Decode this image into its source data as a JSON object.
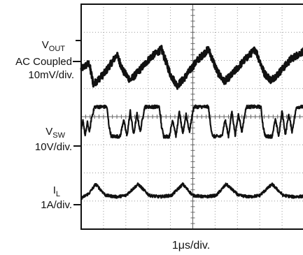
{
  "chart_data": {
    "type": "line",
    "xlabel": "1μs/div.",
    "grid": true,
    "divisions": {
      "x": 10,
      "y": 8
    },
    "series": [
      {
        "name": "VOUT",
        "label_main": "V",
        "label_sub": "OUT",
        "label_line2": "AC Coupled",
        "label_line3": "10mV/div.",
        "baseline_div": 2.55,
        "scale_per_div": "10mV",
        "x": [
          0.0,
          0.35,
          0.55,
          1.05,
          1.6,
          1.9,
          2.2,
          2.5,
          3.1,
          3.6,
          4.0,
          4.3,
          4.6,
          5.2,
          5.7,
          6.1,
          6.4,
          6.7,
          7.3,
          7.8,
          8.2,
          8.5,
          8.8,
          9.4,
          10.0
        ],
        "y": [
          0.25,
          0.45,
          -0.3,
          0.1,
          0.75,
          0.15,
          -0.15,
          0.1,
          0.65,
          0.95,
          0.05,
          -0.35,
          -0.1,
          0.55,
          0.95,
          0.15,
          -0.2,
          0.0,
          0.55,
          0.95,
          0.1,
          -0.15,
          0.05,
          0.6,
          0.9
        ],
        "noise_div": 0.12
      },
      {
        "name": "VSW",
        "label_main": "V",
        "label_sub": "SW",
        "label_line2": "10V/div.",
        "baseline_div": 4.65,
        "scale_per_div": "10V",
        "x": [
          0.0,
          0.08,
          0.18,
          0.28,
          0.38,
          0.45,
          0.6,
          1.15,
          1.25,
          1.35,
          1.75,
          1.9,
          2.05,
          2.2,
          2.35,
          2.5,
          2.65,
          2.75,
          2.85,
          3.5,
          3.6,
          3.7,
          3.95,
          4.1,
          4.25,
          4.4,
          4.55,
          4.7,
          4.85,
          4.95,
          5.05,
          5.7,
          5.8,
          5.9,
          6.3,
          6.45,
          6.6,
          6.75,
          6.9,
          7.05,
          7.2,
          7.3,
          7.4,
          8.05,
          8.15,
          8.25,
          8.55,
          8.7,
          8.85,
          9.0,
          9.15,
          9.3,
          9.45,
          9.55,
          9.65,
          10.0
        ],
        "y": [
          0.15,
          0.55,
          -0.05,
          0.45,
          0.1,
          0.55,
          1.0,
          1.0,
          0.3,
          -0.05,
          -0.05,
          0.55,
          -0.05,
          0.85,
          0.0,
          0.75,
          0.1,
          0.6,
          1.0,
          1.0,
          0.3,
          -0.05,
          -0.05,
          0.55,
          -0.05,
          0.85,
          0.0,
          0.75,
          0.1,
          0.6,
          1.0,
          1.0,
          0.3,
          -0.05,
          -0.05,
          0.55,
          -0.05,
          0.85,
          0.0,
          0.75,
          0.1,
          0.6,
          1.0,
          1.0,
          0.3,
          -0.05,
          -0.05,
          0.55,
          -0.05,
          0.85,
          0.0,
          0.75,
          0.1,
          0.6,
          1.0,
          1.0
        ],
        "noise_div": 0.06
      },
      {
        "name": "IL",
        "label_main": "I",
        "label_sub": "L",
        "label_line2": "1A/div.",
        "baseline_div": 6.85,
        "scale_per_div": "1A",
        "x": [
          0.0,
          0.35,
          0.65,
          1.1,
          1.6,
          2.0,
          2.55,
          3.05,
          3.5,
          4.05,
          4.55,
          5.0,
          5.55,
          6.05,
          6.5,
          7.05,
          7.55,
          8.0,
          8.55,
          9.05,
          9.5,
          10.0
        ],
        "y": [
          -0.05,
          0.12,
          0.45,
          0.05,
          0.0,
          0.05,
          0.45,
          0.05,
          0.0,
          0.05,
          0.45,
          0.05,
          0.0,
          0.05,
          0.45,
          0.05,
          0.0,
          0.05,
          0.45,
          0.05,
          0.0,
          0.02
        ],
        "noise_div": 0.05
      }
    ]
  }
}
